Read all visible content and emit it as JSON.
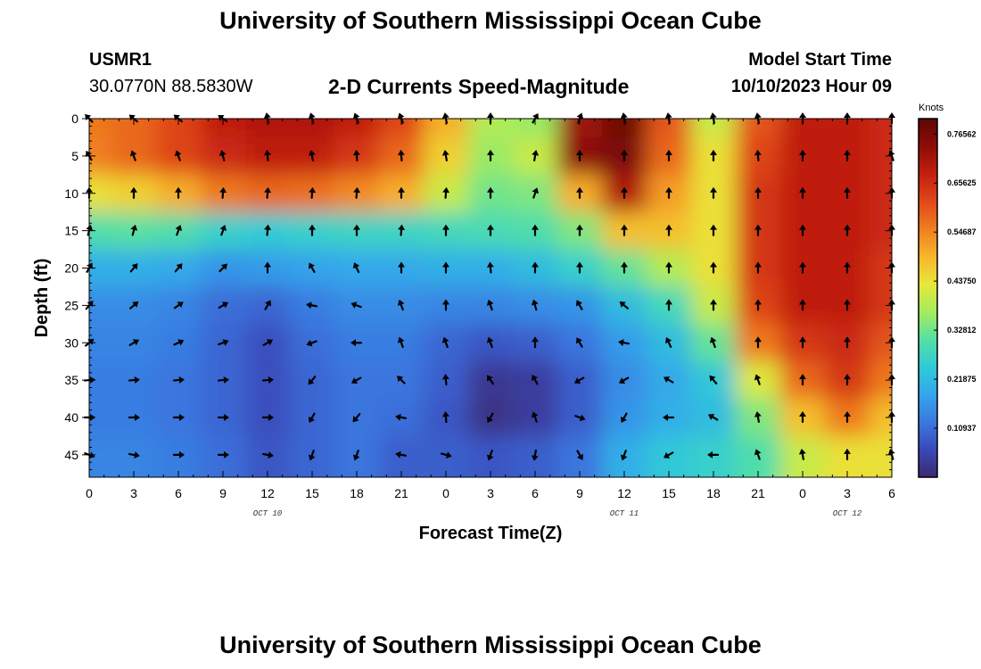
{
  "header": {
    "title": "University of Southern Mississippi Ocean Cube",
    "station": "USMR1",
    "coords": "30.0770N  88.5830W",
    "subtitle": "2-D Currents Speed-Magnitude",
    "model_label": "Model Start Time",
    "model_time": "10/10/2023 Hour 09"
  },
  "footer": {
    "title": "University of Southern Mississippi Ocean Cube"
  },
  "chart_data": {
    "type": "heatmap",
    "title": "2-D Currents Speed-Magnitude",
    "xlabel": "Forecast Time(Z)",
    "ylabel": "Depth (ft)",
    "x_tick_labels": [
      "0",
      "3",
      "6",
      "9",
      "12",
      "15",
      "18",
      "21",
      "0",
      "3",
      "6",
      "9",
      "12",
      "15",
      "18",
      "21",
      "0",
      "3",
      "6"
    ],
    "x_date_labels": [
      {
        "tick_index": 4,
        "text": "OCT 10"
      },
      {
        "tick_index": 12,
        "text": "OCT 11"
      },
      {
        "tick_index": 17,
        "text": "OCT 12"
      }
    ],
    "x_range_hours": [
      0,
      54
    ],
    "y_tick_labels": [
      0,
      5,
      10,
      15,
      20,
      25,
      30,
      35,
      40,
      45
    ],
    "y_range_ft": [
      0,
      48
    ],
    "colorbar": {
      "unit": "Knots",
      "min": 0,
      "max": 0.8,
      "labels": [
        "0.76562",
        "0.65625",
        "0.54687",
        "0.43750",
        "0.32812",
        "0.21875",
        "0.10937"
      ],
      "label_values": [
        0.76562,
        0.65625,
        0.54687,
        0.4375,
        0.32812,
        0.21875,
        0.10937
      ],
      "colors": [
        "#3b2a6e",
        "#3a49b8",
        "#3a78e0",
        "#34a6ec",
        "#2fcbd6",
        "#55e0a5",
        "#a6ec5a",
        "#e8e83a",
        "#f7b52c",
        "#f07e1f",
        "#e0481a",
        "#c2200f",
        "#8f0c08",
        "#5c0705"
      ]
    },
    "rows_depth_ft": [
      0,
      5,
      10,
      15,
      20,
      25,
      30,
      35,
      40,
      45
    ],
    "cols_hours": [
      0,
      3,
      6,
      9,
      12,
      15,
      18,
      21,
      24,
      27,
      30,
      33,
      36,
      39,
      42,
      45,
      48,
      51,
      54
    ],
    "speed": [
      [
        0.56,
        0.58,
        0.62,
        0.68,
        0.7,
        0.7,
        0.68,
        0.62,
        0.5,
        0.38,
        0.36,
        0.72,
        0.78,
        0.6,
        0.4,
        0.6,
        0.68,
        0.68,
        0.66
      ],
      [
        0.55,
        0.58,
        0.62,
        0.66,
        0.68,
        0.68,
        0.64,
        0.58,
        0.46,
        0.36,
        0.4,
        0.74,
        0.76,
        0.58,
        0.44,
        0.62,
        0.68,
        0.68,
        0.66
      ],
      [
        0.44,
        0.46,
        0.5,
        0.56,
        0.58,
        0.57,
        0.54,
        0.5,
        0.4,
        0.33,
        0.34,
        0.5,
        0.7,
        0.52,
        0.44,
        0.64,
        0.68,
        0.68,
        0.66
      ],
      [
        0.3,
        0.31,
        0.3,
        0.26,
        0.25,
        0.26,
        0.27,
        0.27,
        0.28,
        0.29,
        0.3,
        0.34,
        0.48,
        0.48,
        0.44,
        0.64,
        0.68,
        0.68,
        0.66
      ],
      [
        0.2,
        0.2,
        0.19,
        0.16,
        0.17,
        0.18,
        0.19,
        0.19,
        0.2,
        0.2,
        0.22,
        0.26,
        0.32,
        0.38,
        0.44,
        0.64,
        0.68,
        0.68,
        0.64
      ],
      [
        0.15,
        0.15,
        0.14,
        0.11,
        0.1,
        0.13,
        0.15,
        0.15,
        0.14,
        0.14,
        0.15,
        0.16,
        0.22,
        0.28,
        0.4,
        0.62,
        0.68,
        0.68,
        0.64
      ],
      [
        0.14,
        0.14,
        0.13,
        0.1,
        0.07,
        0.11,
        0.13,
        0.13,
        0.1,
        0.08,
        0.09,
        0.12,
        0.17,
        0.22,
        0.32,
        0.56,
        0.64,
        0.66,
        0.6
      ],
      [
        0.13,
        0.13,
        0.12,
        0.1,
        0.07,
        0.1,
        0.12,
        0.12,
        0.09,
        0.03,
        0.04,
        0.09,
        0.15,
        0.19,
        0.24,
        0.42,
        0.58,
        0.64,
        0.56
      ],
      [
        0.13,
        0.13,
        0.12,
        0.1,
        0.07,
        0.1,
        0.12,
        0.11,
        0.08,
        0.02,
        0.04,
        0.09,
        0.16,
        0.2,
        0.22,
        0.34,
        0.48,
        0.56,
        0.48
      ],
      [
        0.14,
        0.14,
        0.13,
        0.11,
        0.08,
        0.1,
        0.12,
        0.09,
        0.09,
        0.08,
        0.09,
        0.12,
        0.2,
        0.24,
        0.26,
        0.3,
        0.4,
        0.44,
        0.44
      ]
    ],
    "direction_deg": [
      [
        225,
        220,
        220,
        215,
        260,
        255,
        250,
        250,
        260,
        270,
        300,
        290,
        260,
        260,
        260,
        260,
        270,
        270,
        270
      ],
      [
        240,
        250,
        250,
        255,
        265,
        260,
        265,
        265,
        260,
        270,
        280,
        270,
        270,
        270,
        270,
        265,
        270,
        270,
        250
      ],
      [
        270,
        270,
        270,
        275,
        275,
        275,
        275,
        270,
        275,
        270,
        290,
        270,
        270,
        270,
        270,
        270,
        270,
        270,
        270
      ],
      [
        285,
        285,
        290,
        290,
        275,
        270,
        270,
        275,
        270,
        270,
        270,
        270,
        270,
        270,
        270,
        270,
        270,
        270,
        270
      ],
      [
        300,
        310,
        310,
        315,
        270,
        240,
        245,
        270,
        270,
        265,
        270,
        270,
        270,
        270,
        270,
        270,
        270,
        270,
        270
      ],
      [
        310,
        320,
        325,
        330,
        300,
        190,
        200,
        250,
        270,
        250,
        255,
        240,
        220,
        270,
        270,
        270,
        270,
        270,
        270
      ],
      [
        320,
        330,
        335,
        340,
        330,
        160,
        180,
        250,
        250,
        250,
        270,
        240,
        190,
        245,
        250,
        270,
        270,
        270,
        270
      ],
      [
        355,
        355,
        355,
        355,
        355,
        130,
        150,
        225,
        265,
        235,
        240,
        150,
        150,
        210,
        230,
        250,
        270,
        270,
        270
      ],
      [
        0,
        0,
        0,
        0,
        0,
        120,
        130,
        190,
        265,
        120,
        250,
        20,
        120,
        180,
        210,
        260,
        270,
        270,
        270
      ],
      [
        20,
        10,
        0,
        0,
        10,
        110,
        110,
        190,
        15,
        110,
        100,
        60,
        110,
        150,
        180,
        250,
        260,
        270,
        255
      ]
    ]
  }
}
